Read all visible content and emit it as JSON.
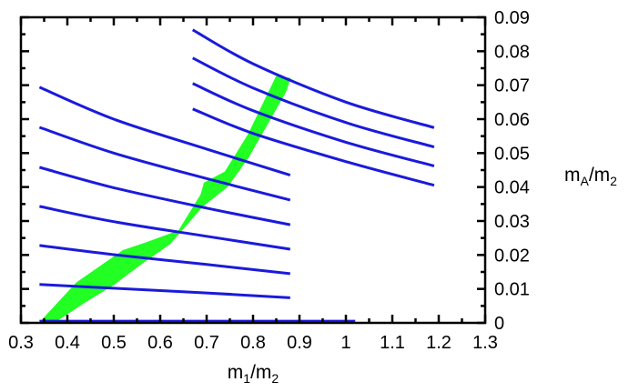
{
  "chart_data": {
    "type": "line",
    "xlabel": {
      "base": "m",
      "sub": "1",
      "rest": "/m",
      "sub2": "2"
    },
    "ylabel": {
      "base": "m",
      "sub": "A",
      "rest": "/m",
      "sub2": "2"
    },
    "xlim": [
      0.3,
      1.3
    ],
    "ylim": [
      0,
      0.09
    ],
    "x_ticks": [
      "0.3",
      "0.4",
      "0.5",
      "0.6",
      "0.7",
      "0.8",
      "0.9",
      "1",
      "1.1",
      "1.2",
      "1.3"
    ],
    "y_ticks": [
      "0",
      "0.01",
      "0.02",
      "0.03",
      "0.04",
      "0.05",
      "0.06",
      "0.07",
      "0.08",
      "0.09"
    ],
    "y_axis_side": "right",
    "grid": false,
    "line_color": "#1a1adc",
    "band_color": "#22ff22",
    "lines": [
      {
        "x": [
          0.34,
          1.02
        ],
        "y": [
          0.0005,
          0.0005
        ]
      },
      {
        "x": [
          0.34,
          0.5,
          0.7,
          0.88
        ],
        "y": [
          0.0113,
          0.0102,
          0.0088,
          0.0074
        ]
      },
      {
        "x": [
          0.34,
          0.5,
          0.7,
          0.88
        ],
        "y": [
          0.0228,
          0.0201,
          0.0172,
          0.0145
        ]
      },
      {
        "x": [
          0.34,
          0.5,
          0.7,
          0.88
        ],
        "y": [
          0.0343,
          0.0298,
          0.0255,
          0.0217
        ]
      },
      {
        "x": [
          0.34,
          0.5,
          0.7,
          0.88
        ],
        "y": [
          0.0458,
          0.0398,
          0.0338,
          0.0289
        ]
      },
      {
        "x": [
          0.34,
          0.5,
          0.7,
          0.88
        ],
        "y": [
          0.0576,
          0.05,
          0.0425,
          0.0362
        ]
      },
      {
        "x": [
          0.34,
          0.5,
          0.7,
          0.88
        ],
        "y": [
          0.0694,
          0.06,
          0.0512,
          0.0435
        ]
      },
      {
        "x": [
          0.67,
          0.8,
          1.0,
          1.19
        ],
        "y": [
          0.0863,
          0.0763,
          0.065,
          0.0575
        ]
      },
      {
        "x": [
          0.67,
          0.8,
          1.0,
          1.19
        ],
        "y": [
          0.078,
          0.0692,
          0.059,
          0.0518
        ]
      },
      {
        "x": [
          0.67,
          0.8,
          1.0,
          1.19
        ],
        "y": [
          0.0705,
          0.0625,
          0.0532,
          0.0462
        ]
      },
      {
        "x": [
          0.67,
          0.8,
          1.0,
          1.19
        ],
        "y": [
          0.063,
          0.0558,
          0.0475,
          0.0405
        ]
      }
    ],
    "band": {
      "upper": [
        [
          0.34,
          0.0
        ],
        [
          0.42,
          0.0118
        ],
        [
          0.52,
          0.0213
        ],
        [
          0.57,
          0.0236
        ],
        [
          0.64,
          0.0271
        ],
        [
          0.688,
          0.0378
        ],
        [
          0.695,
          0.0412
        ],
        [
          0.74,
          0.0445
        ],
        [
          0.79,
          0.0555
        ],
        [
          0.85,
          0.0725
        ],
        [
          0.88,
          0.072
        ]
      ],
      "lower": [
        [
          0.37,
          0.0
        ],
        [
          0.44,
          0.0063
        ],
        [
          0.5,
          0.0113
        ],
        [
          0.56,
          0.0175
        ],
        [
          0.62,
          0.0232
        ],
        [
          0.67,
          0.031
        ],
        [
          0.69,
          0.0342
        ],
        [
          0.745,
          0.0402
        ],
        [
          0.79,
          0.0488
        ],
        [
          0.87,
          0.068
        ]
      ]
    }
  }
}
